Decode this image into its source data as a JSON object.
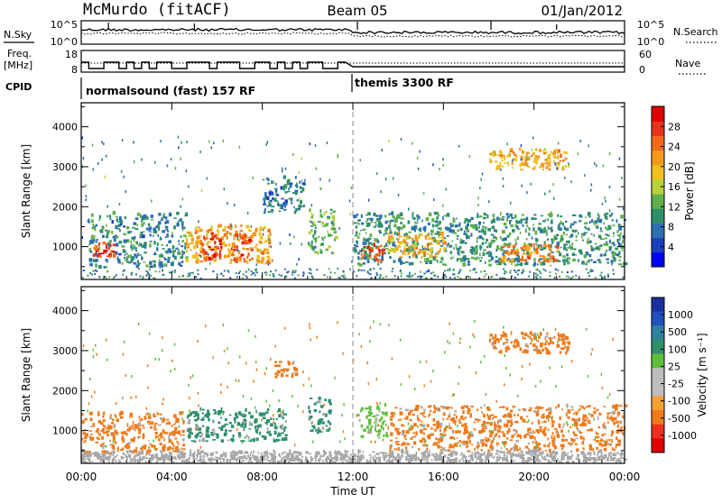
{
  "header": {
    "station": "McMurdo (fitACF)",
    "beam": "Beam 05",
    "date": "01/Jan/2012"
  },
  "top_panel": {
    "left_label": "N.Sky",
    "left_ticks": [
      "10^5",
      "10^0"
    ],
    "right_ticks": [
      "10^5",
      "10^0"
    ],
    "right_label": "N.Search"
  },
  "freq_panel": {
    "left_label_1": "Freq.",
    "left_label_2": "[MHz]",
    "left_ticks": [
      "18",
      "8"
    ],
    "right_ticks": [
      "60",
      "0"
    ],
    "right_label": "Nave"
  },
  "cpid": {
    "label": "CPID",
    "modes": [
      "normalsound (fast) 157 RF",
      "themis 3300 RF"
    ]
  },
  "colors": {
    "power_scale": [
      "#0000ff",
      "#1a3fbf",
      "#2b6fb0",
      "#2f8f6a",
      "#5fb04a",
      "#b7d23a",
      "#f2c01e",
      "#f39a1a",
      "#f06a18",
      "#e8331b",
      "#e00000"
    ],
    "velocity_scale": [
      "#e00000",
      "#f03020",
      "#f07a1a",
      "#f5a030",
      "#bdbdbd",
      "#bdbdbd",
      "#5fbf3a",
      "#2f8f6a",
      "#2f7fa0",
      "#2050c0",
      "#1a2f9f"
    ],
    "ground_scatter": "#a8a8a8"
  },
  "chart_data": [
    {
      "type": "heatmap",
      "title": "",
      "xlabel": "",
      "ylabel": "Slant Range [km]",
      "x_ticks": [
        "00:00",
        "04:00",
        "08:00",
        "12:00",
        "16:00",
        "20:00",
        "00:00"
      ],
      "y_ticks": [
        "1000",
        "2000",
        "3000",
        "4000"
      ],
      "xlim_hours": [
        0,
        24
      ],
      "ylim_km": [
        180,
        4600
      ],
      "colorbar_label": "Power [dB]",
      "colorbar_ticks": [
        "4",
        "8",
        "12",
        "16",
        "20",
        "24",
        "28"
      ],
      "colorbar_range": [
        0,
        30
      ],
      "echo_regions": [
        {
          "t0": 0.3,
          "t1": 4.6,
          "r0": 450,
          "r1": 1800,
          "level": 8
        },
        {
          "t0": 0.5,
          "t1": 1.5,
          "r0": 700,
          "r1": 1050,
          "level": 26
        },
        {
          "t0": 4.6,
          "t1": 8.4,
          "r0": 550,
          "r1": 1500,
          "level": 20
        },
        {
          "t0": 5.2,
          "t1": 6.2,
          "r0": 600,
          "r1": 1300,
          "level": 27
        },
        {
          "t0": 6.6,
          "t1": 7.5,
          "r0": 550,
          "r1": 1250,
          "level": 25
        },
        {
          "t0": 8.0,
          "t1": 9.8,
          "r0": 1800,
          "r1": 2700,
          "level": 7
        },
        {
          "t0": 10.0,
          "t1": 11.2,
          "r0": 800,
          "r1": 1900,
          "level": 12
        },
        {
          "t0": 12.0,
          "t1": 24.0,
          "r0": 500,
          "r1": 1800,
          "level": 9
        },
        {
          "t0": 12.3,
          "t1": 13.3,
          "r0": 600,
          "r1": 1000,
          "level": 27
        },
        {
          "t0": 13.5,
          "t1": 16.0,
          "r0": 700,
          "r1": 1300,
          "level": 19
        },
        {
          "t0": 18.5,
          "t1": 21.0,
          "r0": 600,
          "r1": 1000,
          "level": 22
        },
        {
          "t0": 18.0,
          "t1": 21.5,
          "r0": 2900,
          "r1": 3400,
          "level": 20
        }
      ]
    },
    {
      "type": "heatmap",
      "title": "",
      "xlabel": "Time UT",
      "ylabel": "Slant Range [km]",
      "x_ticks": [
        "00:00",
        "04:00",
        "08:00",
        "12:00",
        "16:00",
        "20:00",
        "00:00"
      ],
      "y_ticks": [
        "1000",
        "2000",
        "3000",
        "4000"
      ],
      "xlim_hours": [
        0,
        24
      ],
      "ylim_km": [
        180,
        4600
      ],
      "colorbar_label": "Velocity [m s⁻¹]",
      "colorbar_ticks": [
        "1000",
        "500",
        "100",
        "25",
        "-25",
        "-100",
        "-500",
        "-1000"
      ],
      "echo_regions": [
        {
          "t0": 0.0,
          "t1": 4.5,
          "r0": 400,
          "r1": 1400,
          "level": "-200"
        },
        {
          "t0": 4.6,
          "t1": 9.0,
          "r0": 700,
          "r1": 1500,
          "level": "250"
        },
        {
          "t0": 8.5,
          "t1": 9.5,
          "r0": 2300,
          "r1": 2700,
          "level": "-200"
        },
        {
          "t0": 10.0,
          "t1": 11.0,
          "r0": 900,
          "r1": 1800,
          "level": "120"
        },
        {
          "t0": 12.1,
          "t1": 13.5,
          "r0": 800,
          "r1": 1600,
          "level": "60"
        },
        {
          "t0": 13.5,
          "t1": 24.0,
          "r0": 450,
          "r1": 1600,
          "level": "-300"
        },
        {
          "t0": 18.0,
          "t1": 21.5,
          "r0": 2900,
          "r1": 3400,
          "level": "-250"
        },
        {
          "t0": 0.0,
          "t1": 24.0,
          "r0": 180,
          "r1": 450,
          "level": "ground"
        }
      ]
    }
  ]
}
